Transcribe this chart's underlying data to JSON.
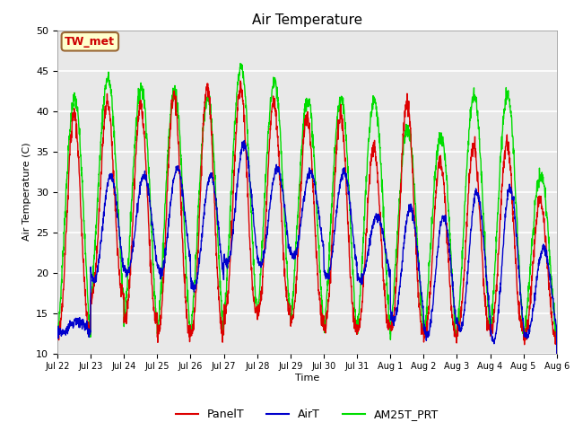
{
  "title": "Air Temperature",
  "xlabel": "Time",
  "ylabel": "Air Temperature (C)",
  "ylim": [
    10,
    50
  ],
  "annotation_text": "TW_met",
  "annotation_bg": "#FFFFCC",
  "annotation_border": "#996633",
  "annotation_text_color": "#CC0000",
  "bg_color": "#E8E8E8",
  "grid_color": "white",
  "line_PanelT_color": "#DD0000",
  "line_AirT_color": "#0000CC",
  "line_AM25T_color": "#00DD00",
  "tick_labels": [
    "Jul 22",
    "Jul 23",
    "Jul 24",
    "Jul 25",
    "Jul 26",
    "Jul 27",
    "Jul 28",
    "Jul 29",
    "Jul 30",
    "Jul 31",
    "Aug 1",
    "Aug 2",
    "Aug 3",
    "Aug 4",
    "Aug 5",
    "Aug 6"
  ],
  "tick_positions": [
    0,
    1,
    2,
    3,
    4,
    5,
    6,
    7,
    8,
    9,
    10,
    11,
    12,
    13,
    14,
    15
  ],
  "yticks": [
    10,
    15,
    20,
    25,
    30,
    35,
    40,
    45,
    50
  ],
  "legend_labels": [
    "PanelT",
    "AirT",
    "AM25T_PRT"
  ]
}
